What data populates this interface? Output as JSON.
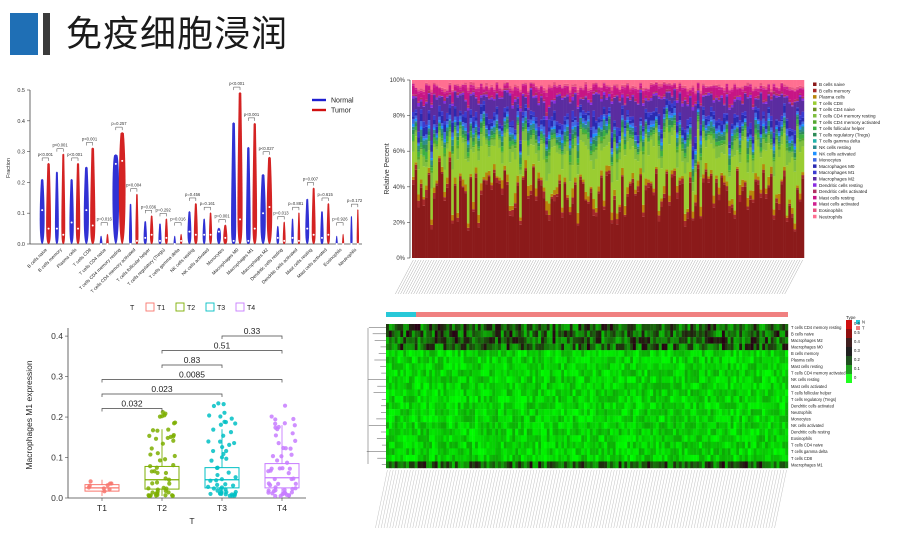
{
  "header": {
    "title": "免疫细胞浸润"
  },
  "chart_data": [
    {
      "type": "violin",
      "ylabel": "Fraction",
      "ylim": [
        0,
        0.5
      ],
      "yticks": [
        "0.0",
        "0.1",
        "0.2",
        "0.3",
        "0.4",
        "0.5"
      ],
      "legend": [
        {
          "name": "Normal",
          "color": "#1f1fd0"
        },
        {
          "name": "Tumor",
          "color": "#d01010"
        }
      ],
      "categories": [
        "B cells naive",
        "B cells memory",
        "Plasma cells",
        "T cells CD8",
        "T cells CD4 naive",
        "T cells CD4 memory resting",
        "T cells CD4 memory activated",
        "T cells follicular helper",
        "T cells regulatory (Tregs)",
        "T cells gamma delta",
        "NK cells resting",
        "NK cells activated",
        "Monocytes",
        "Macrophages M0",
        "Macrophages M1",
        "Macrophages M2",
        "Dendritic cells resting",
        "Dendritic cells activated",
        "Mast cells resting",
        "Mast cells activated",
        "Eosinophils",
        "Neutrophils"
      ],
      "pvalues": [
        "p<0.001",
        "p<0.001",
        "p<0.001",
        "p<0.001",
        "p=0.016",
        "p=0.257",
        "p<0.004",
        "p=0.036",
        "p=0.292",
        "p=0.016",
        "p=0.456",
        "p=0.161",
        "p=0.001",
        "p<0.001",
        "p<0.001",
        "p<0.027",
        "p=0.013",
        "p=0.881",
        "p=0.007",
        "p=0.615",
        "p=0.926",
        "p=0.172"
      ],
      "series": [
        {
          "name": "Normal",
          "medians": [
            0.11,
            0.05,
            0.07,
            0.11,
            0.0,
            0.26,
            0.0,
            0.02,
            0.01,
            0.0,
            0.04,
            0.03,
            0.04,
            0.01,
            0.01,
            0.1,
            0.02,
            0.02,
            0.05,
            0.02,
            0.0,
            0.0
          ]
        },
        {
          "name": "Tumor",
          "medians": [
            0.05,
            0.03,
            0.05,
            0.06,
            0.0,
            0.27,
            0.01,
            0.03,
            0.02,
            0.01,
            0.03,
            0.03,
            0.02,
            0.08,
            0.05,
            0.12,
            0.01,
            0.01,
            0.03,
            0.03,
            0.0,
            0.0
          ]
        }
      ]
    },
    {
      "type": "bar",
      "stacked": true,
      "ylabel": "Relative Percent",
      "yticks": [
        "0%",
        "20%",
        "40%",
        "60%",
        "80%",
        "100%"
      ],
      "legend": [
        "B cells naive",
        "B cells memory",
        "Plasma cells",
        "T cells CD8",
        "T cells CD4 naive",
        "T cells CD4 memory resting",
        "T cells CD4 memory activated",
        "T cells follicular helper",
        "T cells regulatory (Tregs)",
        "T cells gamma delta",
        "NK cells resting",
        "NK cells activated",
        "Monocytes",
        "Macrophages M0",
        "Macrophages M1",
        "Macrophages M2",
        "Dendritic cells resting",
        "Dendritic cells activated",
        "Mast cells resting",
        "Mast cells activated",
        "Eosinophils",
        "Neutrophils"
      ],
      "colors": [
        "#8b1a1a",
        "#a52a2a",
        "#b8860b",
        "#9acd32",
        "#6b8e23",
        "#7fbf3f",
        "#55a630",
        "#3cb043",
        "#2e8b57",
        "#20b2aa",
        "#2e8b8b",
        "#1e90ff",
        "#4169e1",
        "#2a2ab0",
        "#3b3bd0",
        "#5b2ca0",
        "#8a2be2",
        "#b03060",
        "#c71585",
        "#d02090",
        "#e75480",
        "#ff6f91"
      ],
      "band_means": [
        0.36,
        0.02,
        0.03,
        0.18,
        0.0,
        0.05,
        0.01,
        0.02,
        0.02,
        0.0,
        0.02,
        0.01,
        0.02,
        0.03,
        0.02,
        0.1,
        0.01,
        0.01,
        0.04,
        0.01,
        0.01,
        0.03
      ]
    },
    {
      "type": "box",
      "ylabel": "Macrophages M1 expression",
      "xlabel": "T",
      "legend_title": "T",
      "categories": [
        "T1",
        "T2",
        "T3",
        "T4"
      ],
      "colors": [
        "#f8766d",
        "#7cae00",
        "#00bfc4",
        "#c77cff"
      ],
      "ylim": [
        0,
        0.42
      ],
      "yticks": [
        "0.0",
        "0.1",
        "0.2",
        "0.3",
        "0.4"
      ],
      "medians": [
        0.025,
        0.045,
        0.045,
        0.05
      ],
      "q1": [
        0.017,
        0.022,
        0.025,
        0.025
      ],
      "q3": [
        0.033,
        0.078,
        0.075,
        0.085
      ],
      "whisker_hi": [
        0.045,
        0.17,
        0.17,
        0.18
      ],
      "comparisons": [
        {
          "a": "T3",
          "b": "T4",
          "p": "0.33"
        },
        {
          "a": "T2",
          "b": "T4",
          "p": "0.51"
        },
        {
          "a": "T2",
          "b": "T3",
          "p": "0.83"
        },
        {
          "a": "T1",
          "b": "T4",
          "p": "0.0085"
        },
        {
          "a": "T1",
          "b": "T3",
          "p": "0.023"
        },
        {
          "a": "T1",
          "b": "T2",
          "p": "0.032"
        }
      ]
    },
    {
      "type": "heatmap",
      "legend_title": "Type",
      "type_legend": [
        {
          "name": "N",
          "color": "#28c8d8"
        },
        {
          "name": "T",
          "color": "#f08080"
        }
      ],
      "scale": [
        "0.6",
        "0.5",
        "0.4",
        "0.3",
        "0.2",
        "0.1",
        "0"
      ],
      "rows": [
        "T cells CD4 memory resting",
        "B cells naive",
        "Macrophages M2",
        "Macrophages M0",
        "B cells memory",
        "Plasma cells",
        "Mast cells resting",
        "T cells CD4 memory activated",
        "NK cells resting",
        "Mast cells activated",
        "T cells follicular helper",
        "T cells regulatory (Tregs)",
        "Dendritic cells activated",
        "Neutrophils",
        "Monocytes",
        "NK cells activated",
        "Dendritic cells resting",
        "Eosinophils",
        "T cells CD4 naive",
        "T cells gamma delta",
        "T cells CD8",
        "Macrophages M1"
      ]
    }
  ]
}
